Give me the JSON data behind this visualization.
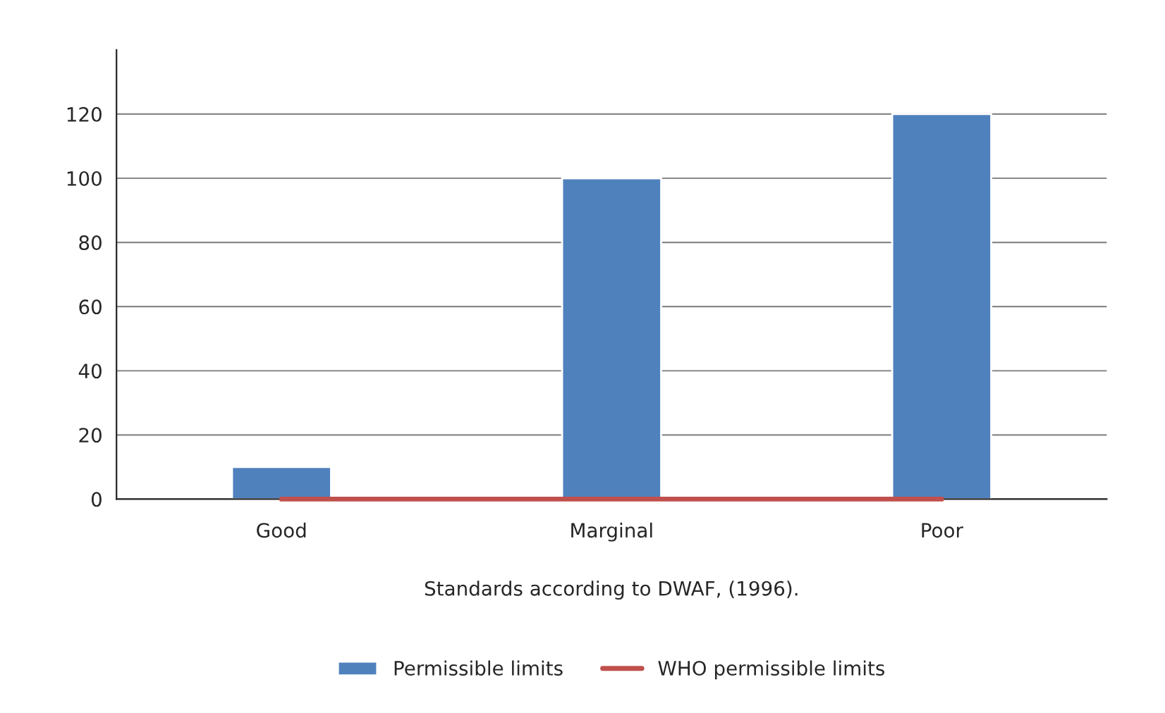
{
  "chart_data": {
    "type": "bar",
    "xlabel": "Standards according to DWAF, (1996).",
    "categories": [
      "Good",
      "Marginal",
      "Poor"
    ],
    "series": [
      {
        "name": "Permissible limits",
        "color": "#4f81bd",
        "values": [
          10,
          100,
          120
        ]
      },
      {
        "name": "WHO permissible limits",
        "color": "#c0504d",
        "type": "line",
        "values": [
          0,
          0,
          0
        ]
      }
    ],
    "ylim": [
      0,
      140
    ],
    "yticks": [
      0,
      20,
      40,
      60,
      80,
      100,
      120
    ],
    "grid": "y",
    "legend": "bottom",
    "marker": "none"
  }
}
